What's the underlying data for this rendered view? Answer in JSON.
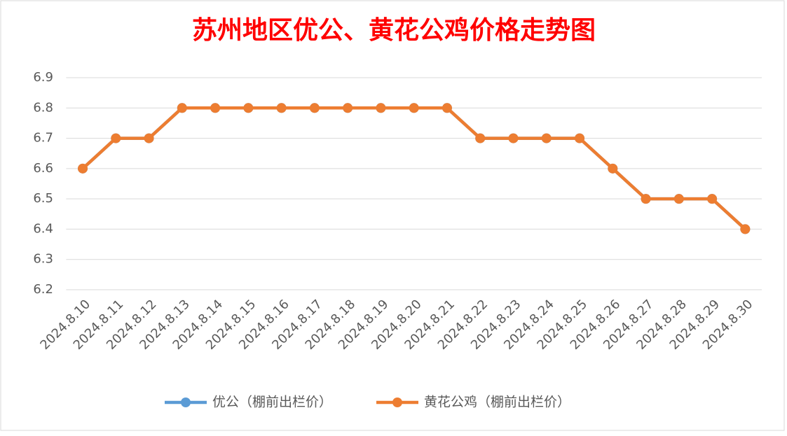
{
  "chart_data": {
    "type": "line",
    "title": "苏州地区优公、黄花公鸡价格走势图",
    "categories": [
      "2024.8.10",
      "2024.8.11",
      "2024.8.12",
      "2024.8.13",
      "2024.8.14",
      "2024.8.15",
      "2024.8.16",
      "2024.8.17",
      "2024.8.18",
      "2024.8.19",
      "2024.8.20",
      "2024.8.21",
      "2024.8.22",
      "2024.8.23",
      "2024.8.24",
      "2024.8.25",
      "2024.8.26",
      "2024.8.27",
      "2024.8.28",
      "2024.8.29",
      "2024.8.30"
    ],
    "series": [
      {
        "name": "优公（棚前出栏价）",
        "color": "#5b9bd5",
        "values": [
          6.6,
          6.7,
          6.7,
          6.8,
          6.8,
          6.8,
          6.8,
          6.8,
          6.8,
          6.8,
          6.8,
          6.8,
          6.7,
          6.7,
          6.7,
          6.7,
          6.6,
          6.5,
          6.5,
          6.5,
          6.4
        ]
      },
      {
        "name": "黄花公鸡（棚前出栏价）",
        "color": "#ed7d31",
        "values": [
          6.6,
          6.7,
          6.7,
          6.8,
          6.8,
          6.8,
          6.8,
          6.8,
          6.8,
          6.8,
          6.8,
          6.8,
          6.7,
          6.7,
          6.7,
          6.7,
          6.6,
          6.5,
          6.5,
          6.5,
          6.4
        ]
      }
    ],
    "ylim": [
      6.2,
      6.9
    ],
    "yticks": [
      6.2,
      6.3,
      6.4,
      6.5,
      6.6,
      6.7,
      6.8,
      6.9
    ],
    "grid": true,
    "legend": "bottom"
  }
}
